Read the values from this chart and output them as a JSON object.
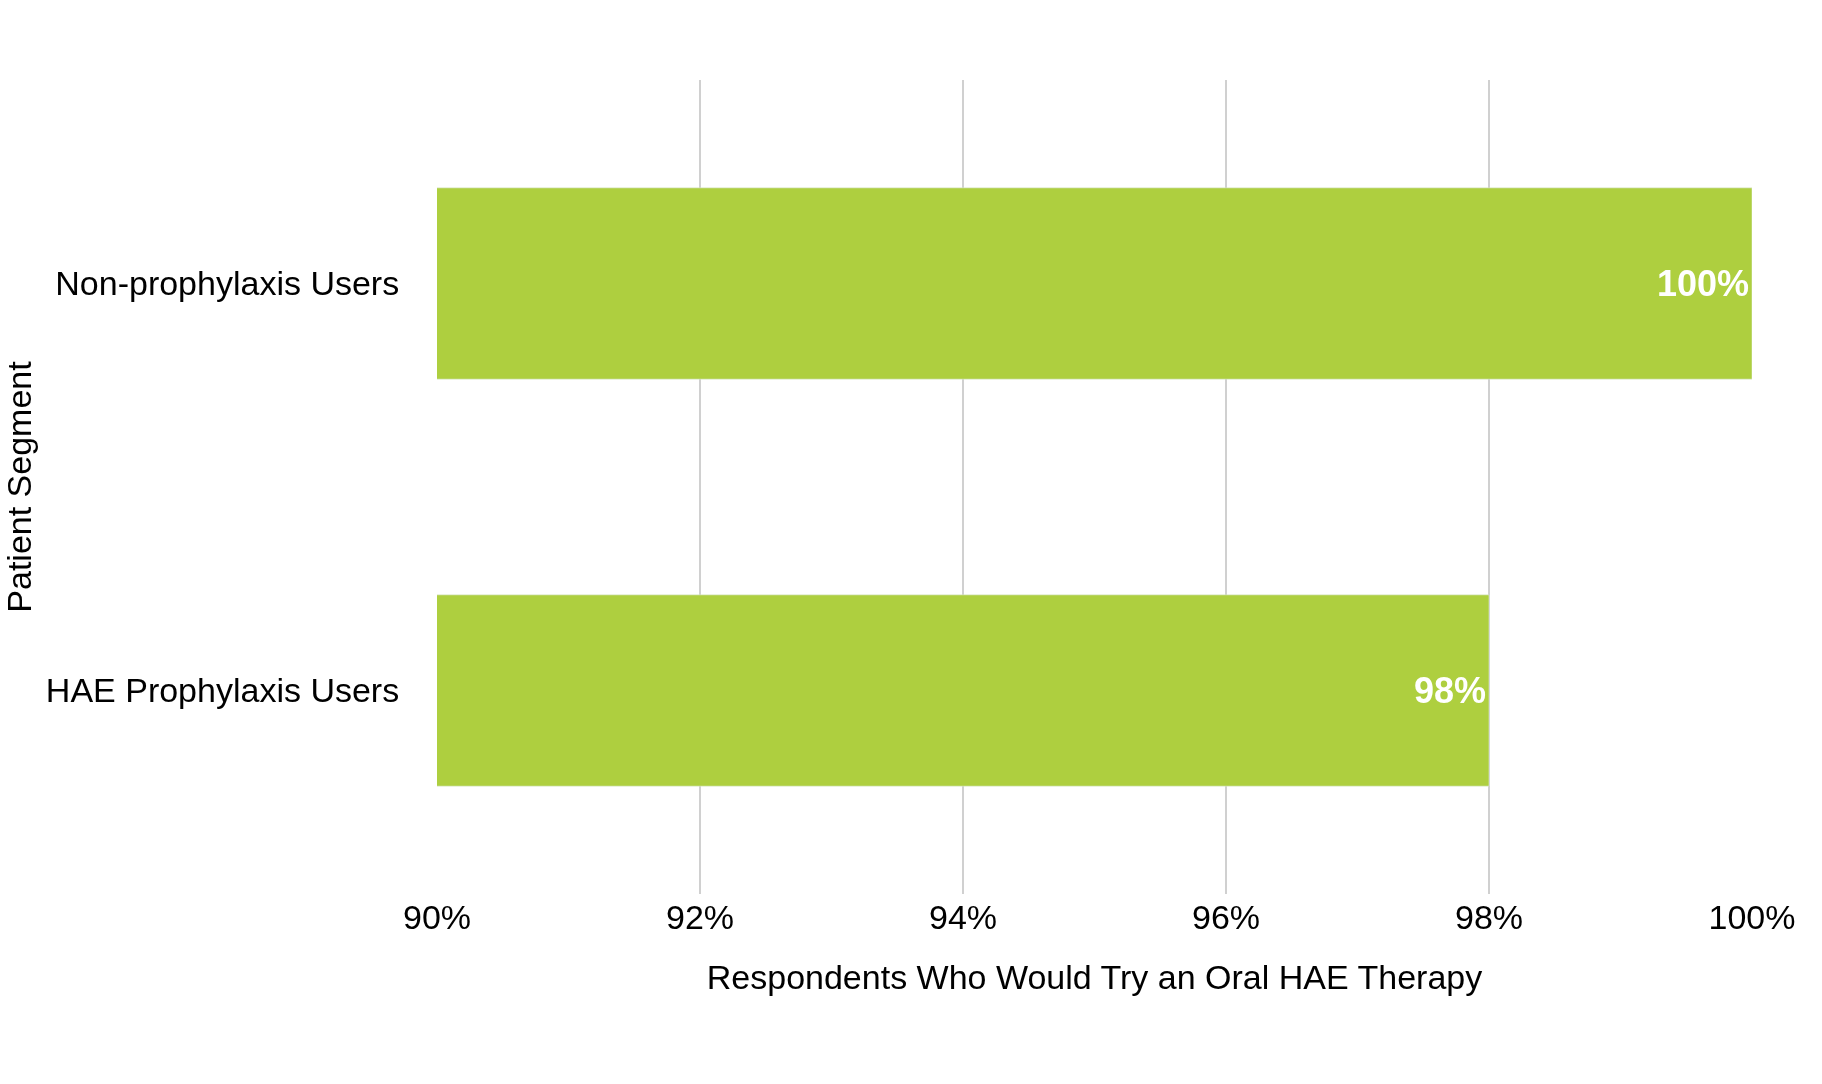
{
  "chart_data": {
    "type": "bar",
    "orientation": "horizontal",
    "xlabel": "Respondents Who Would Try an Oral HAE Therapy",
    "ylabel": "Patient Segment",
    "categories": [
      "Non-prophylaxis Users",
      "HAE Prophylaxis Users"
    ],
    "values": [
      100,
      98
    ],
    "value_labels": [
      "100%",
      "98%"
    ],
    "color": "#aecf3f",
    "xlim": [
      90,
      100
    ],
    "xticks": [
      {
        "value": 90,
        "label": "90%"
      },
      {
        "value": 92,
        "label": "92%"
      },
      {
        "value": 94,
        "label": "94%"
      },
      {
        "value": 96,
        "label": "96%"
      },
      {
        "value": 98,
        "label": "98%"
      },
      {
        "value": 100,
        "label": "100%"
      }
    ],
    "grid": "x",
    "legend": false
  }
}
